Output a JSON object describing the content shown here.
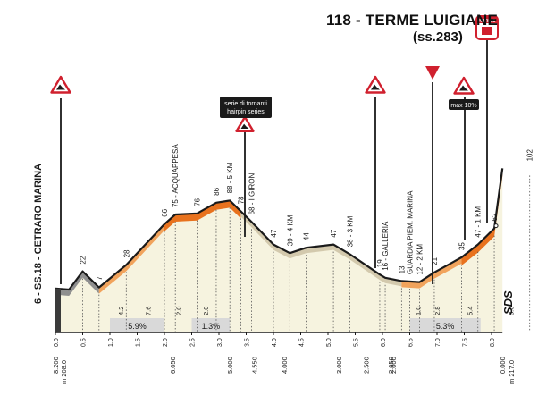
{
  "finish": {
    "title": "118 - TERME LUIGIANE",
    "road": "(ss.283)",
    "badge_label": "ARRIVO"
  },
  "start": {
    "label": "6 - SS.18 - CETRARO MARINA"
  },
  "climbs": {
    "hairpin_note_line1": "serie di tornanti",
    "hairpin_note_line2": "hairpin series",
    "max_gradient": "max 10%"
  },
  "colors": {
    "ink": "#1a1a1a",
    "terrain_fill": "#f6f3df",
    "climb_orange": "#e8721e",
    "climb_light": "#f1a35c",
    "gray_section": "#8f8f8f",
    "alert_red": "#d0202e",
    "gradient_box": "#d9d9d9"
  },
  "icons": {
    "warning": "warning-triangle-icon",
    "finish": "finish-flag-icon",
    "last_km": "red-triangle-icon",
    "logo": "sds-logo"
  },
  "km_markers_top": [
    {
      "text": "22",
      "km": 0.5
    },
    {
      "text": "7",
      "km": 0.8
    },
    {
      "text": "28",
      "km": 1.3
    },
    {
      "text": "66",
      "km": 2.0
    },
    {
      "text": "75 - ACQUAPPESA",
      "km": 2.2
    },
    {
      "text": "76",
      "km": 2.6
    },
    {
      "text": "86",
      "km": 2.95
    },
    {
      "text": "88 - 5 KM",
      "km": 3.2
    },
    {
      "text": "78",
      "km": 3.4
    },
    {
      "text": "68 - I GIRONI",
      "km": 3.6
    },
    {
      "text": "47",
      "km": 4.0
    },
    {
      "text": "39 - 4 KM",
      "km": 4.3
    },
    {
      "text": "44",
      "km": 4.6
    },
    {
      "text": "47",
      "km": 5.1
    },
    {
      "text": "38 - 3 KM",
      "km": 5.4
    },
    {
      "text": "19",
      "km": 5.95
    },
    {
      "text": "16 - GALLERIA",
      "km": 6.05
    },
    {
      "text": "13",
      "km": 6.35
    },
    {
      "text": "GUARDIA PIEM. MARINA",
      "km": 6.5
    },
    {
      "text": "12 - 2 KM",
      "km": 6.68
    },
    {
      "text": "21",
      "km": 6.95
    },
    {
      "text": "35",
      "km": 7.45
    },
    {
      "text": "47 - 1 KM",
      "km": 7.75
    },
    {
      "text": "62",
      "km": 8.05
    },
    {
      "text": "102",
      "km": 8.7
    }
  ],
  "gradient_sections": [
    {
      "text": "5.9%",
      "from": 1.0,
      "to": 2.0
    },
    {
      "text": "1.3%",
      "from": 2.5,
      "to": 3.2
    },
    {
      "text": "5.3%",
      "from": 6.5,
      "to": 7.8
    }
  ],
  "lower_values": [
    {
      "text": "4.2",
      "km": 1.2
    },
    {
      "text": "7.6",
      "km": 1.7
    },
    {
      "text": "2.0",
      "km": 2.25
    },
    {
      "text": "2.0",
      "km": 2.75
    },
    {
      "text": "1.0",
      "km": 6.65
    },
    {
      "text": "2.8",
      "km": 7.0
    },
    {
      "text": "5.4",
      "km": 7.6
    },
    {
      "text": "8.0",
      "km": 8.35
    },
    {
      "text": "8.0",
      "km": 8.9
    }
  ],
  "axis_ticks": [
    {
      "text": "0.0",
      "km": 0.0
    },
    {
      "text": "0.5",
      "km": 0.5
    },
    {
      "text": "1.0",
      "km": 1.0
    },
    {
      "text": "1.5",
      "km": 1.5
    },
    {
      "text": "2.0",
      "km": 2.0
    },
    {
      "text": "2.5",
      "km": 2.5
    },
    {
      "text": "3.0",
      "km": 3.0
    },
    {
      "text": "3.5",
      "km": 3.5
    },
    {
      "text": "4.0",
      "km": 4.0
    },
    {
      "text": "4.5",
      "km": 4.5
    },
    {
      "text": "5.0",
      "km": 5.0
    },
    {
      "text": "5.5",
      "km": 5.5
    },
    {
      "text": "6.0",
      "km": 6.0
    },
    {
      "text": "6.5",
      "km": 6.5
    },
    {
      "text": "7.0",
      "km": 7.0
    },
    {
      "text": "7.5",
      "km": 7.5
    },
    {
      "text": "8.0",
      "km": 8.0
    }
  ],
  "distance_remaining": [
    {
      "text": "8.200",
      "km": 0.0
    },
    {
      "text": "6.050",
      "km": 2.15
    },
    {
      "text": "5.000",
      "km": 3.2
    },
    {
      "text": "4.550",
      "km": 3.65
    },
    {
      "text": "4.000",
      "km": 4.2
    },
    {
      "text": "3.000",
      "km": 5.2
    },
    {
      "text": "2.500",
      "km": 5.7
    },
    {
      "text": "2.050",
      "km": 6.15
    },
    {
      "text": "2.000",
      "km": 6.2
    },
    {
      "text": "0.000",
      "km": 8.2
    }
  ],
  "altitude_labels": [
    {
      "text": "m 208.0",
      "km": 0.0
    },
    {
      "text": "m 217.0",
      "km": 8.2
    }
  ],
  "profile": [
    {
      "km": 0.0,
      "alt": 6
    },
    {
      "km": 0.25,
      "alt": 5
    },
    {
      "km": 0.5,
      "alt": 22
    },
    {
      "km": 0.8,
      "alt": 7
    },
    {
      "km": 1.3,
      "alt": 28
    },
    {
      "km": 2.0,
      "alt": 66
    },
    {
      "km": 2.2,
      "alt": 75
    },
    {
      "km": 2.6,
      "alt": 76
    },
    {
      "km": 2.95,
      "alt": 86
    },
    {
      "km": 3.2,
      "alt": 88
    },
    {
      "km": 3.4,
      "alt": 78
    },
    {
      "km": 3.6,
      "alt": 68
    },
    {
      "km": 4.0,
      "alt": 47
    },
    {
      "km": 4.3,
      "alt": 39
    },
    {
      "km": 4.6,
      "alt": 44
    },
    {
      "km": 5.1,
      "alt": 47
    },
    {
      "km": 5.4,
      "alt": 38
    },
    {
      "km": 5.95,
      "alt": 19
    },
    {
      "km": 6.05,
      "alt": 16
    },
    {
      "km": 6.35,
      "alt": 13
    },
    {
      "km": 6.68,
      "alt": 12
    },
    {
      "km": 6.95,
      "alt": 21
    },
    {
      "km": 7.45,
      "alt": 35
    },
    {
      "km": 7.75,
      "alt": 47
    },
    {
      "km": 8.05,
      "alt": 62
    },
    {
      "km": 8.2,
      "alt": 118
    }
  ],
  "brand": "SDS"
}
